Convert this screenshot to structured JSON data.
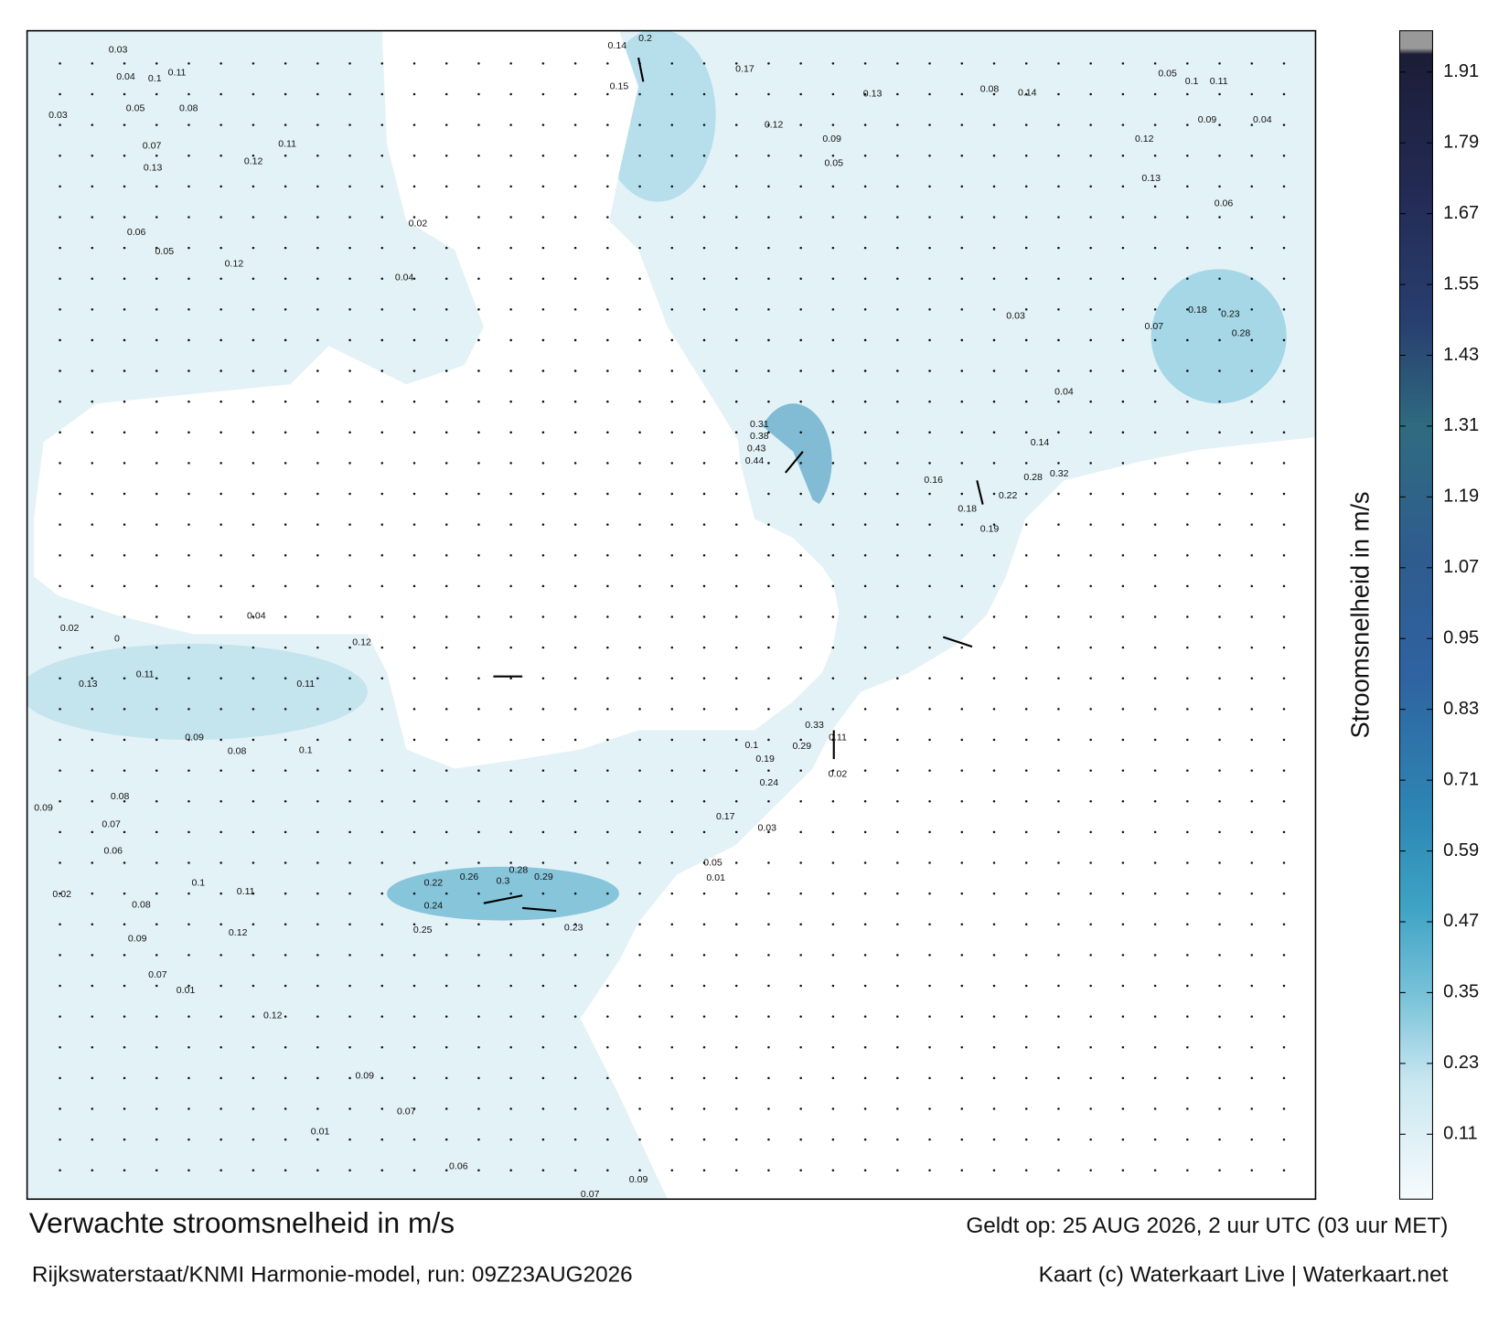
{
  "title": "Verwachte stroomsnelheid in m/s",
  "subtitle": "Rijkswaterstaat/KNMI Harmonie-model, run: 09Z23AUG2026",
  "valid_time": "Geldt op: 25 AUG 2026, 2 uur UTC (03 uur MET)",
  "credit": "Kaart (c) Waterkaart Live | Waterkaart.net",
  "colorbar": {
    "label": "Stroomsnelheid in m/s",
    "lim": [
      0,
      1.98
    ],
    "ticks": [
      0.11,
      0.23,
      0.35,
      0.47,
      0.59,
      0.71,
      0.83,
      0.95,
      1.07,
      1.19,
      1.31,
      1.43,
      1.55,
      1.67,
      1.79,
      1.91
    ]
  },
  "map_labels": [
    0.03,
    0.04,
    0.1,
    0.11,
    0.08,
    0.05,
    0.03,
    0.07,
    0.13,
    0.12,
    0.11,
    0.06,
    0.12,
    0.05,
    0.02,
    0.04,
    0.14,
    0.2,
    0.15,
    0.17,
    0.12,
    0.09,
    0.05,
    0.13,
    0.08,
    0.14,
    0.05,
    0.1,
    0.11,
    0.04,
    0.09,
    0.12,
    0.13,
    0.06,
    0.03,
    0.07,
    0.18,
    0.23,
    0.28,
    0.44,
    0.43,
    0.38,
    0.31,
    0.32,
    0.28,
    0.22,
    0.19,
    0.16,
    0.18,
    0.14,
    0.04,
    0.3,
    0.28,
    0.29,
    0.26,
    0.24,
    0.25,
    0.22,
    0.23,
    0.1,
    0.11,
    0.09,
    0.08,
    0.12,
    0.07,
    0.01,
    0.12,
    0.09,
    0.01,
    0.07,
    0.06,
    0.09,
    0.07,
    0.1,
    0.19,
    0.24,
    0.29,
    0.33,
    0.11,
    0.02,
    0.17,
    0.03,
    0.05,
    0.01,
    0.09,
    0.08,
    0.07,
    0.06,
    0.02,
    0.13,
    0.11,
    0.12,
    0.11,
    0.1,
    0.09,
    0.08,
    0.04,
    0.02,
    0
  ]
}
